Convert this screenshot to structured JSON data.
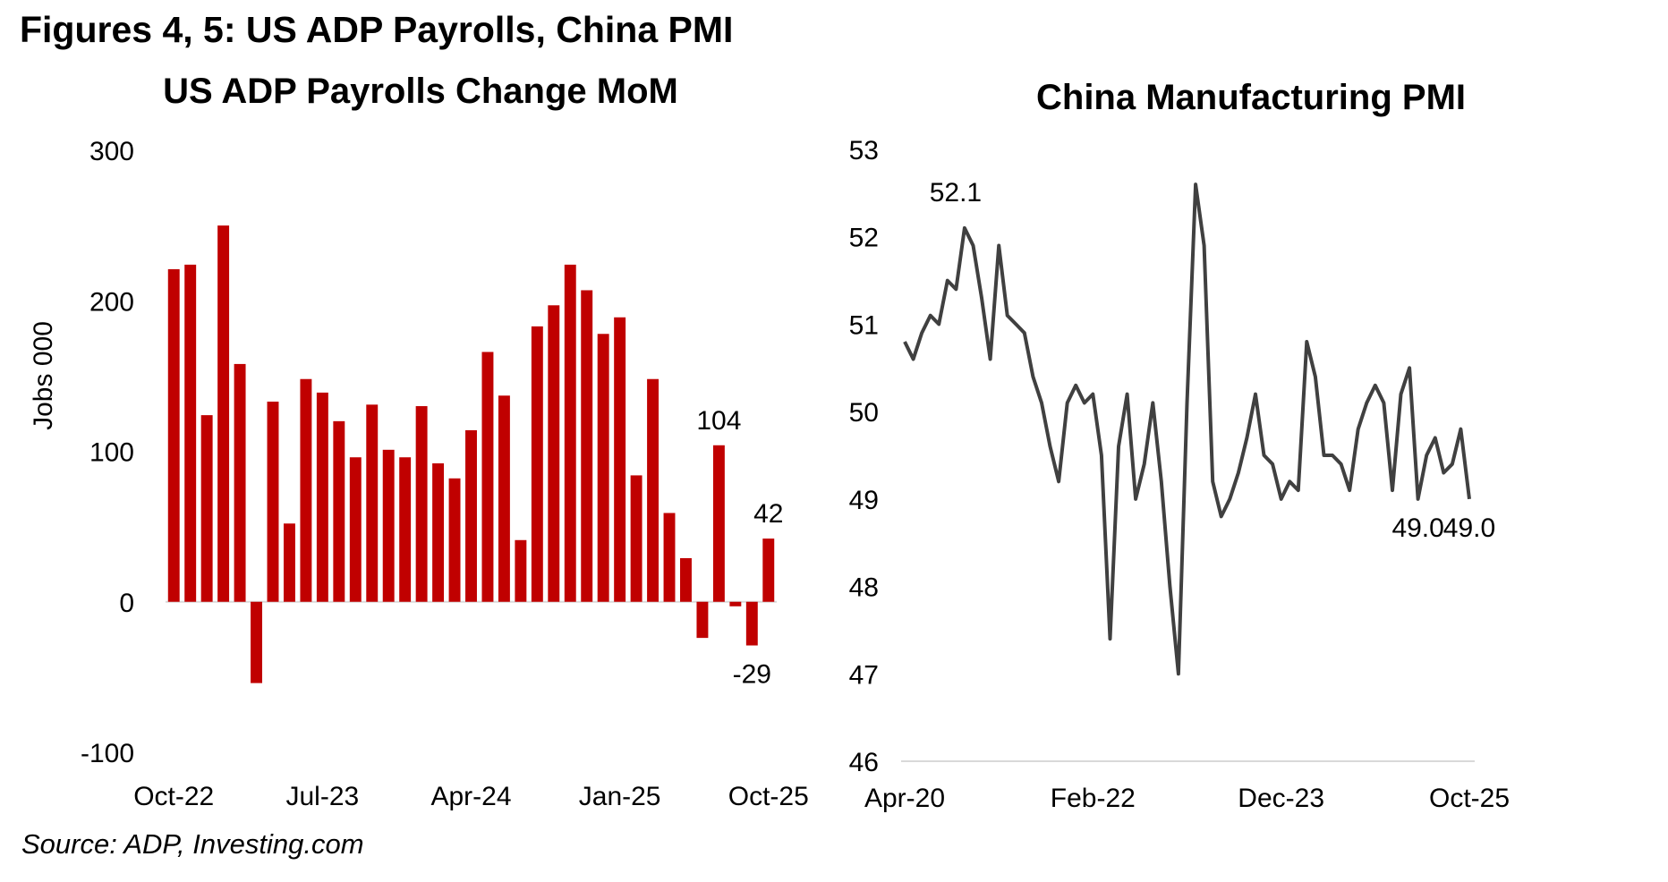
{
  "figure_title": "Figures 4, 5: US ADP Payrolls, China PMI",
  "source": "Source: ADP, Investing.com",
  "colors": {
    "bar": "#c00000",
    "line": "#404040",
    "axis": "#d9d9d9"
  },
  "chart_data": [
    {
      "type": "bar",
      "title": "US ADP Payrolls Change MoM",
      "ylabel": "Jobs 000",
      "xlabel": "",
      "ylim": [
        -100,
        300
      ],
      "yticks": [
        "-100",
        "0",
        "100",
        "200",
        "300"
      ],
      "xtick_labels": [
        "Oct-22",
        "Jul-23",
        "Apr-24",
        "Jan-25",
        "Oct-25"
      ],
      "categories": [
        "Oct-22",
        "Nov-22",
        "Dec-22",
        "Jan-23",
        "Feb-23",
        "Mar-23",
        "Apr-23",
        "May-23",
        "Jun-23",
        "Jul-23",
        "Aug-23",
        "Sep-23",
        "Oct-23",
        "Nov-23",
        "Dec-23",
        "Jan-24",
        "Feb-24",
        "Mar-24",
        "Apr-24",
        "May-24",
        "Jun-24",
        "Jul-24",
        "Aug-24",
        "Sep-24",
        "Oct-24",
        "Nov-24",
        "Dec-24",
        "Jan-25",
        "Feb-25",
        "Mar-25",
        "Apr-25",
        "May-25",
        "Jun-25",
        "Jul-25",
        "Aug-25",
        "Sep-25",
        "Oct-25"
      ],
      "values": [
        221,
        224,
        124,
        250,
        158,
        -54,
        133,
        52,
        148,
        139,
        120,
        96,
        131,
        101,
        96,
        130,
        92,
        82,
        114,
        166,
        137,
        41,
        183,
        197,
        224,
        207,
        178,
        189,
        84,
        148,
        59,
        29,
        -24,
        104,
        -3,
        -29,
        42
      ],
      "data_labels": [
        {
          "index": 33,
          "text": "104"
        },
        {
          "index": 35,
          "text": "-29"
        },
        {
          "index": 36,
          "text": "42"
        }
      ],
      "grid": false
    },
    {
      "type": "line",
      "title": "China Manufacturing PMI",
      "ylabel": "",
      "xlabel": "",
      "ylim": [
        46,
        53
      ],
      "yticks": [
        "46",
        "47",
        "48",
        "49",
        "50",
        "51",
        "52",
        "53"
      ],
      "xtick_labels": [
        "Apr-20",
        "Feb-22",
        "Dec-23",
        "Oct-25"
      ],
      "x_start": "Apr-20",
      "x_end": "Oct-25",
      "values": [
        50.8,
        50.6,
        50.9,
        51.1,
        51.0,
        51.5,
        51.4,
        52.1,
        51.9,
        51.3,
        50.6,
        51.9,
        51.1,
        51.0,
        50.9,
        50.4,
        50.1,
        49.6,
        49.2,
        50.1,
        50.3,
        50.1,
        50.2,
        49.5,
        47.4,
        49.6,
        50.2,
        49.0,
        49.4,
        50.1,
        49.2,
        48.0,
        47.0,
        50.1,
        52.6,
        51.9,
        49.2,
        48.8,
        49.0,
        49.3,
        49.7,
        50.2,
        49.5,
        49.4,
        49.0,
        49.2,
        49.1,
        50.8,
        50.4,
        49.5,
        49.5,
        49.4,
        49.1,
        49.8,
        50.1,
        50.3,
        50.1,
        49.1,
        50.2,
        50.5,
        49.0,
        49.5,
        49.7,
        49.3,
        49.4,
        49.8,
        49.0
      ],
      "data_labels": [
        {
          "index": 7,
          "text": "52.1"
        },
        {
          "index": 60,
          "text": "49.0"
        },
        {
          "index": 66,
          "text": "49.0"
        }
      ],
      "grid": false
    }
  ]
}
